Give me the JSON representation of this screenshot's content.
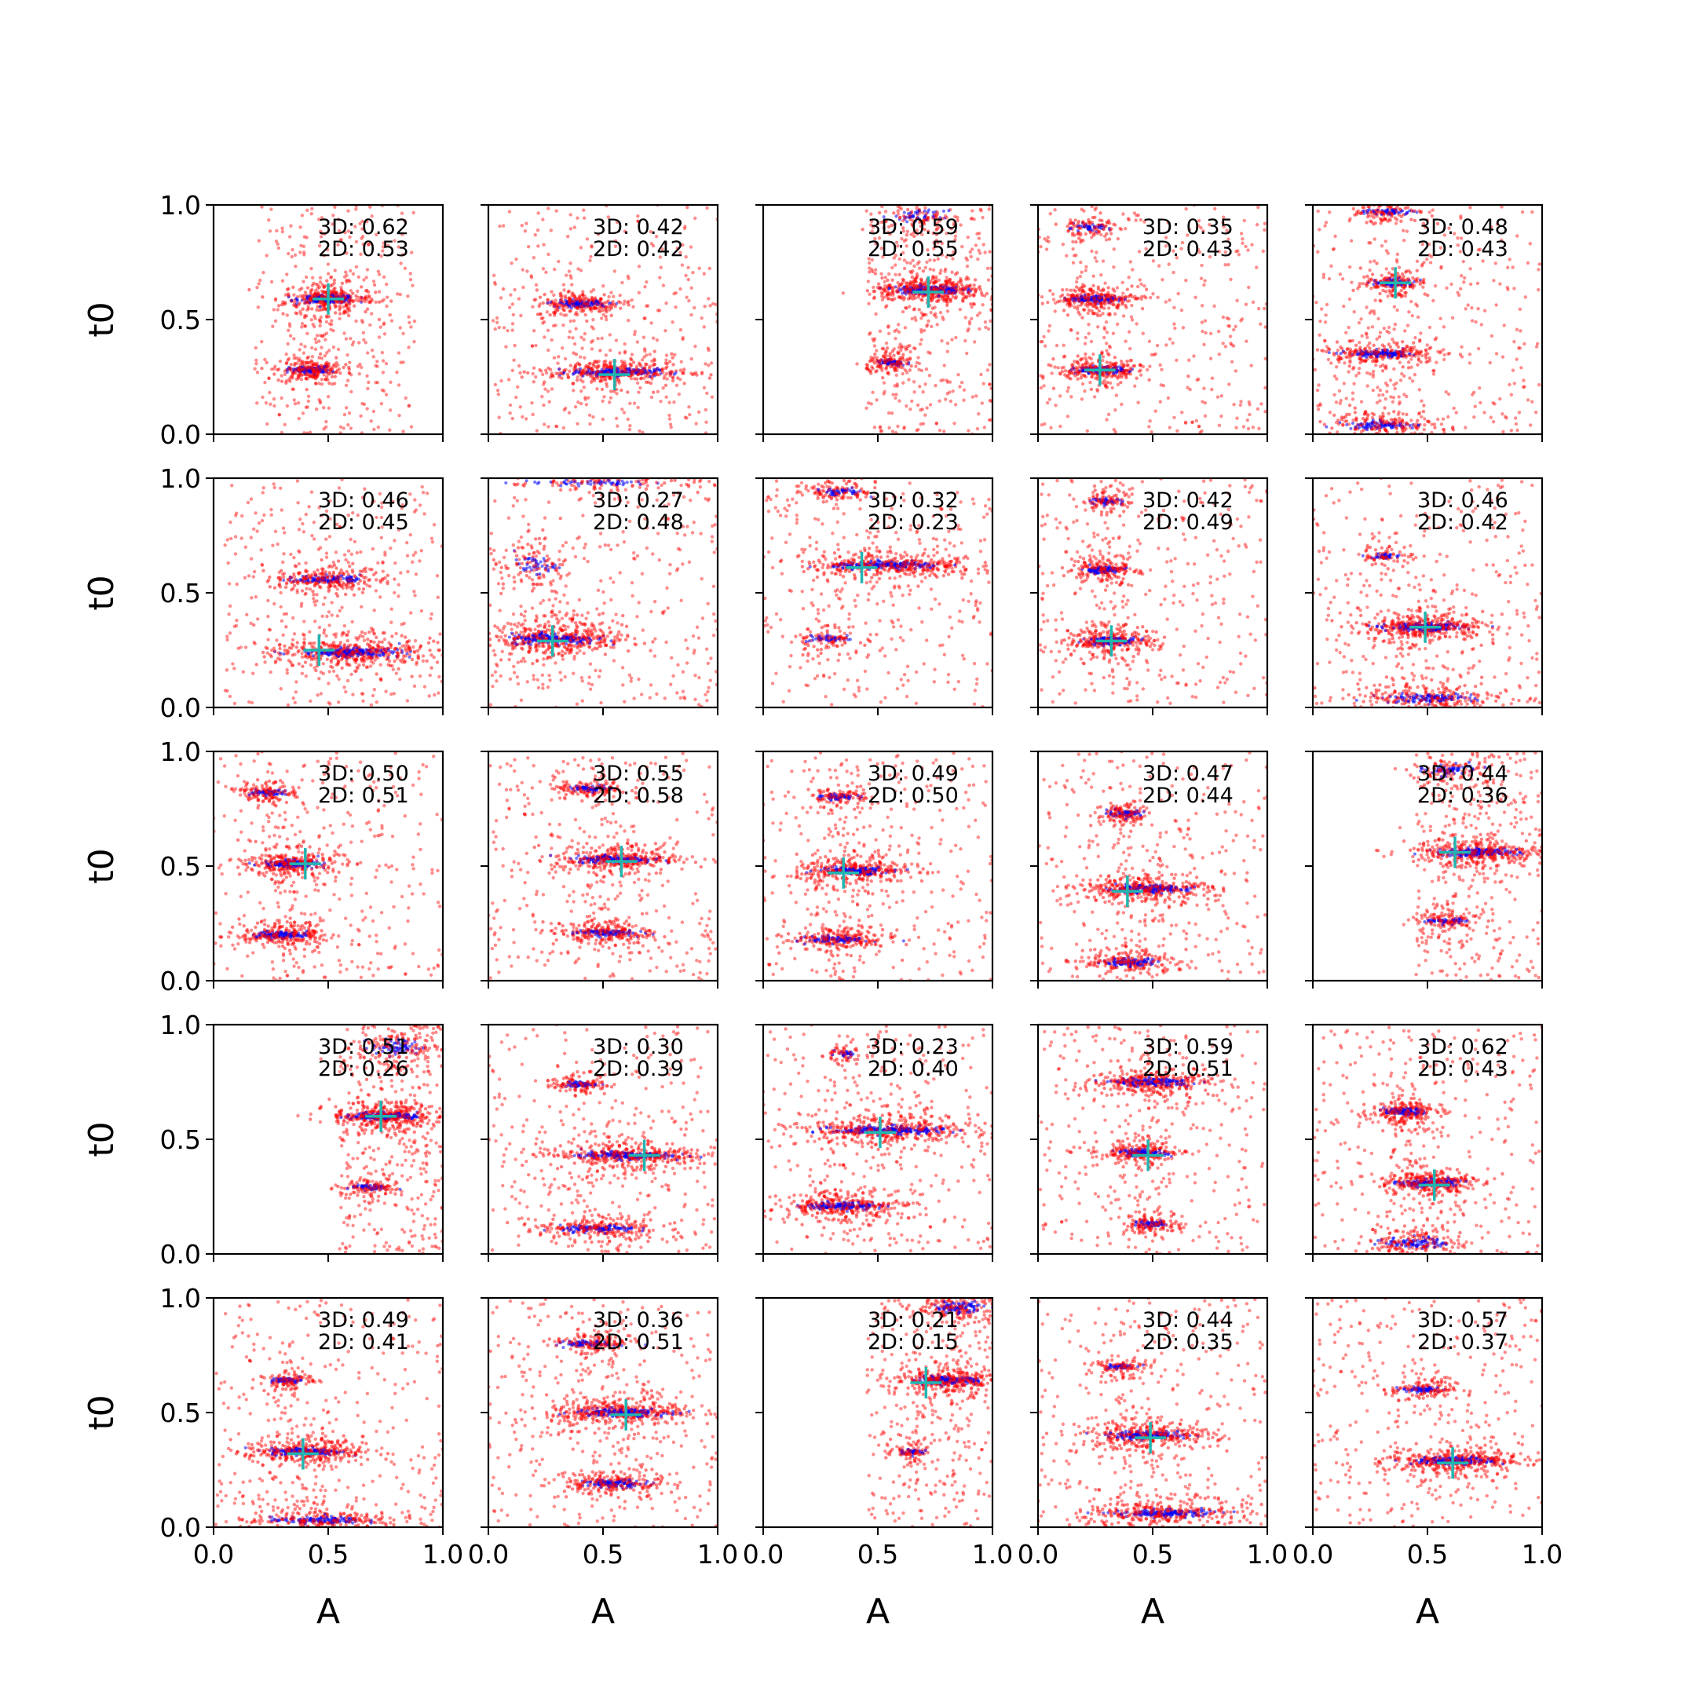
{
  "colors": {
    "samples_3d": "#ff0000",
    "samples_2d": "#0000ff",
    "truth_marker": "#22b5b0",
    "axes": "#000000"
  },
  "chart_data": {
    "type": "scatter",
    "layout": {
      "rows": 5,
      "cols": 5,
      "sharex": true,
      "sharey": true
    },
    "xlabel": "A",
    "ylabel": "t0",
    "xlim": [
      0.0,
      1.0
    ],
    "ylim": [
      0.0,
      1.0
    ],
    "xticks": [
      "0.0",
      "0.5",
      "1.0"
    ],
    "yticks": [
      "0.0",
      "0.5",
      "1.0"
    ],
    "grid": false,
    "panels": [
      {
        "r": 0,
        "c": 0,
        "truth": [
          0.5,
          0.59
        ],
        "score_3d": "3D: 0.62",
        "score_2d": "2D: 0.53",
        "clusters": [
          {
            "a": 0.5,
            "t": 0.59,
            "wa": 0.11,
            "wt": 0.014,
            "n": 180
          },
          {
            "a": 0.42,
            "t": 0.28,
            "wa": 0.08,
            "wt": 0.012,
            "n": 130
          }
        ],
        "a_range": [
          0.18,
          0.88
        ]
      },
      {
        "r": 0,
        "c": 1,
        "truth": [
          0.55,
          0.26
        ],
        "score_3d": "3D: 0.42",
        "score_2d": "2D: 0.42",
        "clusters": [
          {
            "a": 0.55,
            "t": 0.27,
            "wa": 0.17,
            "wt": 0.014,
            "n": 200
          },
          {
            "a": 0.4,
            "t": 0.57,
            "wa": 0.11,
            "wt": 0.012,
            "n": 120
          }
        ],
        "a_range": [
          0.02,
          1.0
        ]
      },
      {
        "r": 0,
        "c": 2,
        "truth": [
          0.72,
          0.62
        ],
        "score_3d": "3D: 0.59",
        "score_2d": "2D: 0.55",
        "clusters": [
          {
            "a": 0.72,
            "t": 0.63,
            "wa": 0.13,
            "wt": 0.015,
            "n": 220
          },
          {
            "a": 0.56,
            "t": 0.31,
            "wa": 0.06,
            "wt": 0.01,
            "n": 70
          },
          {
            "a": 0.68,
            "t": 0.95,
            "wa": 0.1,
            "wt": 0.02,
            "n": 50
          }
        ],
        "a_range": [
          0.45,
          1.0
        ]
      },
      {
        "r": 0,
        "c": 3,
        "truth": [
          0.27,
          0.28
        ],
        "score_3d": "3D: 0.35",
        "score_2d": "2D: 0.43",
        "clusters": [
          {
            "a": 0.27,
            "t": 0.28,
            "wa": 0.1,
            "wt": 0.012,
            "n": 140
          },
          {
            "a": 0.25,
            "t": 0.59,
            "wa": 0.1,
            "wt": 0.012,
            "n": 140
          },
          {
            "a": 0.22,
            "t": 0.9,
            "wa": 0.08,
            "wt": 0.012,
            "n": 50
          }
        ],
        "a_range": [
          0.0,
          1.0
        ]
      },
      {
        "r": 0,
        "c": 4,
        "truth": [
          0.36,
          0.66
        ],
        "score_3d": "3D: 0.48",
        "score_2d": "2D: 0.43",
        "clusters": [
          {
            "a": 0.36,
            "t": 0.66,
            "wa": 0.08,
            "wt": 0.012,
            "n": 90
          },
          {
            "a": 0.3,
            "t": 0.35,
            "wa": 0.14,
            "wt": 0.012,
            "n": 130
          },
          {
            "a": 0.33,
            "t": 0.97,
            "wa": 0.1,
            "wt": 0.01,
            "n": 60
          },
          {
            "a": 0.3,
            "t": 0.04,
            "wa": 0.14,
            "wt": 0.014,
            "n": 100
          }
        ],
        "a_range": [
          0.0,
          1.0
        ]
      },
      {
        "r": 1,
        "c": 0,
        "truth": [
          0.46,
          0.25
        ],
        "score_3d": "3D: 0.46",
        "score_2d": "2D: 0.45",
        "clusters": [
          {
            "a": 0.6,
            "t": 0.24,
            "wa": 0.2,
            "wt": 0.015,
            "n": 220
          },
          {
            "a": 0.5,
            "t": 0.56,
            "wa": 0.13,
            "wt": 0.013,
            "n": 130
          }
        ],
        "a_range": [
          0.05,
          1.0
        ]
      },
      {
        "r": 1,
        "c": 1,
        "truth": [
          0.28,
          0.29
        ],
        "score_3d": "3D: 0.27",
        "score_2d": "2D: 0.48",
        "clusters": [
          {
            "a": 0.28,
            "t": 0.3,
            "wa": 0.17,
            "wt": 0.02,
            "n": 220
          },
          {
            "a": 0.2,
            "t": 0.62,
            "wa": 0.08,
            "wt": 0.03,
            "n": 50
          },
          {
            "a": 0.45,
            "t": 0.98,
            "wa": 0.3,
            "wt": 0.01,
            "n": 60
          }
        ],
        "a_range": [
          0.0,
          1.0
        ]
      },
      {
        "r": 1,
        "c": 2,
        "truth": [
          0.43,
          0.61
        ],
        "score_3d": "3D: 0.32",
        "score_2d": "2D: 0.23",
        "clusters": [
          {
            "a": 0.55,
            "t": 0.62,
            "wa": 0.22,
            "wt": 0.012,
            "n": 200
          },
          {
            "a": 0.28,
            "t": 0.3,
            "wa": 0.08,
            "wt": 0.012,
            "n": 50
          },
          {
            "a": 0.33,
            "t": 0.94,
            "wa": 0.1,
            "wt": 0.012,
            "n": 60
          }
        ],
        "a_range": [
          0.0,
          1.0
        ]
      },
      {
        "r": 1,
        "c": 3,
        "truth": [
          0.32,
          0.29
        ],
        "score_3d": "3D: 0.42",
        "score_2d": "2D: 0.49",
        "clusters": [
          {
            "a": 0.32,
            "t": 0.29,
            "wa": 0.1,
            "wt": 0.013,
            "n": 150
          },
          {
            "a": 0.28,
            "t": 0.6,
            "wa": 0.08,
            "wt": 0.012,
            "n": 100
          },
          {
            "a": 0.3,
            "t": 0.9,
            "wa": 0.06,
            "wt": 0.01,
            "n": 50
          }
        ],
        "a_range": [
          0.0,
          1.0
        ]
      },
      {
        "r": 1,
        "c": 4,
        "truth": [
          0.49,
          0.35
        ],
        "score_3d": "3D: 0.46",
        "score_2d": "2D: 0.42",
        "clusters": [
          {
            "a": 0.49,
            "t": 0.35,
            "wa": 0.15,
            "wt": 0.013,
            "n": 200
          },
          {
            "a": 0.32,
            "t": 0.66,
            "wa": 0.06,
            "wt": 0.01,
            "n": 40
          },
          {
            "a": 0.5,
            "t": 0.04,
            "wa": 0.18,
            "wt": 0.015,
            "n": 130
          }
        ],
        "a_range": [
          0.0,
          1.0
        ]
      },
      {
        "r": 2,
        "c": 0,
        "truth": [
          0.4,
          0.51
        ],
        "score_3d": "3D: 0.50",
        "score_2d": "2D: 0.51",
        "clusters": [
          {
            "a": 0.34,
            "t": 0.51,
            "wa": 0.11,
            "wt": 0.013,
            "n": 160
          },
          {
            "a": 0.3,
            "t": 0.2,
            "wa": 0.1,
            "wt": 0.012,
            "n": 130
          },
          {
            "a": 0.24,
            "t": 0.82,
            "wa": 0.07,
            "wt": 0.01,
            "n": 70
          }
        ],
        "a_range": [
          0.0,
          1.0
        ]
      },
      {
        "r": 2,
        "c": 1,
        "truth": [
          0.58,
          0.52
        ],
        "score_3d": "3D: 0.55",
        "score_2d": "2D: 0.58",
        "clusters": [
          {
            "a": 0.55,
            "t": 0.53,
            "wa": 0.15,
            "wt": 0.013,
            "n": 170
          },
          {
            "a": 0.5,
            "t": 0.21,
            "wa": 0.12,
            "wt": 0.012,
            "n": 120
          },
          {
            "a": 0.45,
            "t": 0.84,
            "wa": 0.09,
            "wt": 0.01,
            "n": 70
          }
        ],
        "a_range": [
          0.0,
          1.0
        ]
      },
      {
        "r": 2,
        "c": 2,
        "truth": [
          0.35,
          0.47
        ],
        "score_3d": "3D: 0.49",
        "score_2d": "2D: 0.50",
        "clusters": [
          {
            "a": 0.4,
            "t": 0.48,
            "wa": 0.14,
            "wt": 0.013,
            "n": 170
          },
          {
            "a": 0.33,
            "t": 0.18,
            "wa": 0.12,
            "wt": 0.012,
            "n": 120
          },
          {
            "a": 0.33,
            "t": 0.8,
            "wa": 0.07,
            "wt": 0.01,
            "n": 60
          }
        ],
        "a_range": [
          0.0,
          1.0
        ]
      },
      {
        "r": 2,
        "c": 3,
        "truth": [
          0.39,
          0.39
        ],
        "score_3d": "3D: 0.47",
        "score_2d": "2D: 0.44",
        "clusters": [
          {
            "a": 0.47,
            "t": 0.4,
            "wa": 0.16,
            "wt": 0.013,
            "n": 190
          },
          {
            "a": 0.38,
            "t": 0.73,
            "wa": 0.07,
            "wt": 0.012,
            "n": 70
          },
          {
            "a": 0.4,
            "t": 0.08,
            "wa": 0.11,
            "wt": 0.013,
            "n": 110
          }
        ],
        "a_range": [
          0.0,
          1.0
        ]
      },
      {
        "r": 2,
        "c": 4,
        "truth": [
          0.62,
          0.56
        ],
        "score_3d": "3D: 0.44",
        "score_2d": "2D: 0.36",
        "clusters": [
          {
            "a": 0.72,
            "t": 0.56,
            "wa": 0.16,
            "wt": 0.013,
            "n": 200
          },
          {
            "a": 0.58,
            "t": 0.26,
            "wa": 0.08,
            "wt": 0.01,
            "n": 60
          },
          {
            "a": 0.6,
            "t": 0.92,
            "wa": 0.1,
            "wt": 0.02,
            "n": 60
          }
        ],
        "a_range": [
          0.45,
          1.0
        ]
      },
      {
        "r": 3,
        "c": 0,
        "truth": [
          0.73,
          0.6
        ],
        "score_3d": "3D: 0.51",
        "score_2d": "2D: 0.26",
        "clusters": [
          {
            "a": 0.75,
            "t": 0.6,
            "wa": 0.13,
            "wt": 0.013,
            "n": 200
          },
          {
            "a": 0.68,
            "t": 0.29,
            "wa": 0.08,
            "wt": 0.01,
            "n": 60
          },
          {
            "a": 0.8,
            "t": 0.9,
            "wa": 0.1,
            "wt": 0.03,
            "n": 80
          }
        ],
        "a_range": [
          0.55,
          1.0
        ]
      },
      {
        "r": 3,
        "c": 1,
        "truth": [
          0.68,
          0.43
        ],
        "score_3d": "3D: 0.30",
        "score_2d": "2D: 0.39",
        "clusters": [
          {
            "a": 0.6,
            "t": 0.43,
            "wa": 0.18,
            "wt": 0.013,
            "n": 200
          },
          {
            "a": 0.4,
            "t": 0.74,
            "wa": 0.07,
            "wt": 0.01,
            "n": 60
          },
          {
            "a": 0.48,
            "t": 0.11,
            "wa": 0.15,
            "wt": 0.012,
            "n": 120
          }
        ],
        "a_range": [
          0.0,
          1.0
        ]
      },
      {
        "r": 3,
        "c": 2,
        "truth": [
          0.51,
          0.53
        ],
        "score_3d": "3D: 0.23",
        "score_2d": "2D: 0.40",
        "clusters": [
          {
            "a": 0.55,
            "t": 0.54,
            "wa": 0.22,
            "wt": 0.014,
            "n": 220
          },
          {
            "a": 0.35,
            "t": 0.21,
            "wa": 0.15,
            "wt": 0.014,
            "n": 160
          },
          {
            "a": 0.35,
            "t": 0.87,
            "wa": 0.05,
            "wt": 0.01,
            "n": 30
          }
        ],
        "a_range": [
          0.0,
          1.0
        ]
      },
      {
        "r": 3,
        "c": 3,
        "truth": [
          0.48,
          0.43
        ],
        "score_3d": "3D: 0.59",
        "score_2d": "2D: 0.51",
        "clusters": [
          {
            "a": 0.5,
            "t": 0.75,
            "wa": 0.15,
            "wt": 0.013,
            "n": 170
          },
          {
            "a": 0.45,
            "t": 0.44,
            "wa": 0.1,
            "wt": 0.012,
            "n": 120
          },
          {
            "a": 0.5,
            "t": 0.13,
            "wa": 0.07,
            "wt": 0.01,
            "n": 70
          }
        ],
        "a_range": [
          0.0,
          1.0
        ]
      },
      {
        "r": 3,
        "c": 4,
        "truth": [
          0.53,
          0.3
        ],
        "score_3d": "3D: 0.62",
        "score_2d": "2D: 0.43",
        "clusters": [
          {
            "a": 0.5,
            "t": 0.31,
            "wa": 0.11,
            "wt": 0.013,
            "n": 170
          },
          {
            "a": 0.4,
            "t": 0.62,
            "wa": 0.08,
            "wt": 0.012,
            "n": 120
          },
          {
            "a": 0.45,
            "t": 0.05,
            "wa": 0.12,
            "wt": 0.02,
            "n": 100
          }
        ],
        "a_range": [
          0.0,
          1.0
        ]
      },
      {
        "r": 4,
        "c": 0,
        "truth": [
          0.39,
          0.32
        ],
        "score_3d": "3D: 0.49",
        "score_2d": "2D: 0.41",
        "clusters": [
          {
            "a": 0.4,
            "t": 0.33,
            "wa": 0.14,
            "wt": 0.013,
            "n": 180
          },
          {
            "a": 0.32,
            "t": 0.64,
            "wa": 0.06,
            "wt": 0.01,
            "n": 60
          },
          {
            "a": 0.45,
            "t": 0.03,
            "wa": 0.18,
            "wt": 0.012,
            "n": 130
          }
        ],
        "a_range": [
          0.0,
          1.0
        ]
      },
      {
        "r": 4,
        "c": 1,
        "truth": [
          0.6,
          0.49
        ],
        "score_3d": "3D: 0.36",
        "score_2d": "2D: 0.51",
        "clusters": [
          {
            "a": 0.58,
            "t": 0.5,
            "wa": 0.18,
            "wt": 0.014,
            "n": 210
          },
          {
            "a": 0.45,
            "t": 0.8,
            "wa": 0.1,
            "wt": 0.01,
            "n": 80
          },
          {
            "a": 0.55,
            "t": 0.19,
            "wa": 0.12,
            "wt": 0.013,
            "n": 120
          }
        ],
        "a_range": [
          0.0,
          1.0
        ]
      },
      {
        "r": 4,
        "c": 2,
        "truth": [
          0.71,
          0.63
        ],
        "score_3d": "3D: 0.21",
        "score_2d": "2D: 0.15",
        "clusters": [
          {
            "a": 0.8,
            "t": 0.64,
            "wa": 0.12,
            "wt": 0.012,
            "n": 180
          },
          {
            "a": 0.65,
            "t": 0.33,
            "wa": 0.05,
            "wt": 0.01,
            "n": 40
          },
          {
            "a": 0.85,
            "t": 0.96,
            "wa": 0.1,
            "wt": 0.02,
            "n": 100
          }
        ],
        "a_range": [
          0.45,
          1.0
        ]
      },
      {
        "r": 4,
        "c": 3,
        "truth": [
          0.49,
          0.39
        ],
        "score_3d": "3D: 0.44",
        "score_2d": "2D: 0.35",
        "clusters": [
          {
            "a": 0.48,
            "t": 0.4,
            "wa": 0.16,
            "wt": 0.013,
            "n": 180
          },
          {
            "a": 0.35,
            "t": 0.7,
            "wa": 0.06,
            "wt": 0.01,
            "n": 50
          },
          {
            "a": 0.55,
            "t": 0.06,
            "wa": 0.2,
            "wt": 0.014,
            "n": 170
          }
        ],
        "a_range": [
          0.0,
          1.0
        ]
      },
      {
        "r": 4,
        "c": 4,
        "truth": [
          0.61,
          0.28
        ],
        "score_3d": "3D: 0.57",
        "score_2d": "2D: 0.37",
        "clusters": [
          {
            "a": 0.62,
            "t": 0.29,
            "wa": 0.16,
            "wt": 0.013,
            "n": 200
          },
          {
            "a": 0.48,
            "t": 0.6,
            "wa": 0.08,
            "wt": 0.01,
            "n": 70
          }
        ],
        "a_range": [
          0.0,
          1.0
        ]
      }
    ]
  }
}
